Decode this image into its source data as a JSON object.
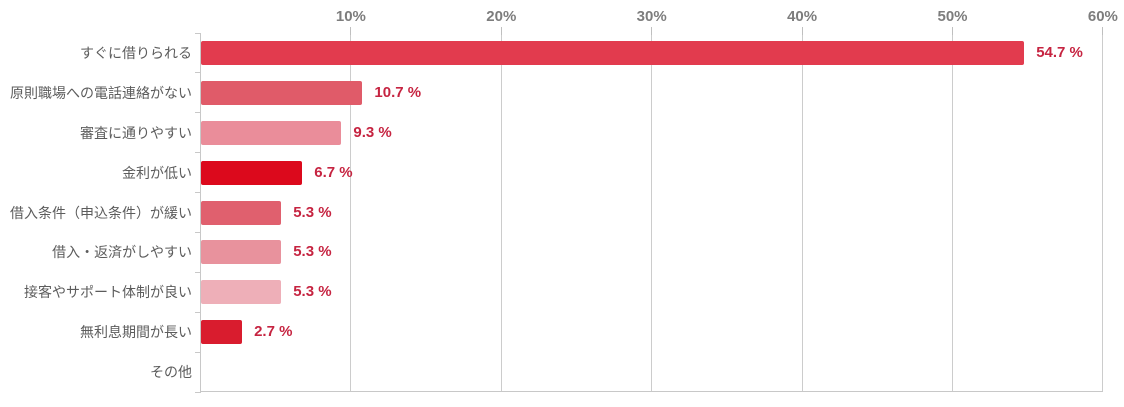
{
  "chart_data": {
    "type": "bar",
    "orientation": "horizontal",
    "title": "",
    "xlabel": "",
    "ylabel": "",
    "xlim": [
      0,
      60
    ],
    "grid": true,
    "legend": false,
    "x_ticks": [
      10,
      20,
      30,
      40,
      50,
      60
    ],
    "x_tick_labels": [
      "10%",
      "20%",
      "30%",
      "40%",
      "50%",
      "60%"
    ],
    "categories": [
      "すぐに借りられる",
      "原則職場への電話連絡がない",
      "審査に通りやすい",
      "金利が低い",
      "借入条件（申込条件）が緩い",
      "借入・返済がしやすい",
      "接客やサポート体制が良い",
      "無利息期間が長い",
      "その他"
    ],
    "values": [
      54.7,
      10.7,
      9.3,
      6.7,
      5.3,
      5.3,
      5.3,
      2.7,
      0
    ],
    "value_labels": [
      "54.7 %",
      "10.7 %",
      "9.3 %",
      "6.7 %",
      "5.3 %",
      "5.3 %",
      "5.3 %",
      "2.7 %",
      ""
    ],
    "bar_colors": [
      "#e23b4e",
      "#e05b69",
      "#ea8d9a",
      "#dc091c",
      "#e0606e",
      "#e8929d",
      "#eeafb8",
      "#d91c2e",
      "#ffffff"
    ],
    "colors": {
      "axis_tick_label": "#7d7d7d",
      "category_label": "#5c5c5c",
      "value_label": "#c62441",
      "gridline": "#cccccc",
      "axis_line": "#c8c8c8",
      "background": "#ffffff"
    }
  }
}
